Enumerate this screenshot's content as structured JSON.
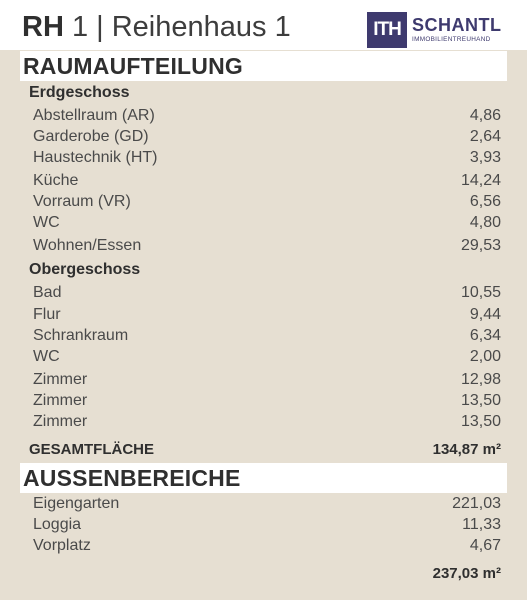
{
  "header": {
    "title_bold": "RH",
    "title_rest": "1 | Reihenhaus 1",
    "logo_mark": "ITH",
    "logo_name": "SCHANTL",
    "logo_sub": "IMMOBILIENTREUHAND"
  },
  "raumaufteilung": {
    "heading": "RAUMAUFTEILUNG",
    "erdgeschoss": {
      "label": "Erdgeschoss",
      "rows": [
        {
          "label": "Abstellraum (AR)",
          "value": "4,86"
        },
        {
          "label": "Garderobe (GD)",
          "value": "2,64"
        },
        {
          "label": "Haustechnik (HT)",
          "value": "3,93"
        },
        {
          "label": "Küche",
          "value": "14,24"
        },
        {
          "label": "Vorraum (VR)",
          "value": "6,56"
        },
        {
          "label": "WC",
          "value": "4,80"
        },
        {
          "label": "Wohnen/Essen",
          "value": "29,53"
        }
      ]
    },
    "obergeschoss": {
      "label": "Obergeschoss",
      "rows": [
        {
          "label": "Bad",
          "value": "10,55"
        },
        {
          "label": "Flur",
          "value": "9,44"
        },
        {
          "label": "Schrankraum",
          "value": "6,34"
        },
        {
          "label": "WC",
          "value": "2,00"
        },
        {
          "label": "Zimmer",
          "value": "12,98"
        },
        {
          "label": "Zimmer",
          "value": "13,50"
        },
        {
          "label": "Zimmer",
          "value": "13,50"
        }
      ]
    },
    "total_label": "GESAMTFLÄCHE",
    "total_value": "134,87 m²"
  },
  "aussenbereiche": {
    "heading": "AUSSENBEREICHE",
    "rows": [
      {
        "label": "Eigengarten",
        "value": "221,03"
      },
      {
        "label": "Loggia",
        "value": "11,33"
      },
      {
        "label": "Vorplatz",
        "value": "4,67"
      }
    ],
    "total_value": "237,03 m²"
  }
}
